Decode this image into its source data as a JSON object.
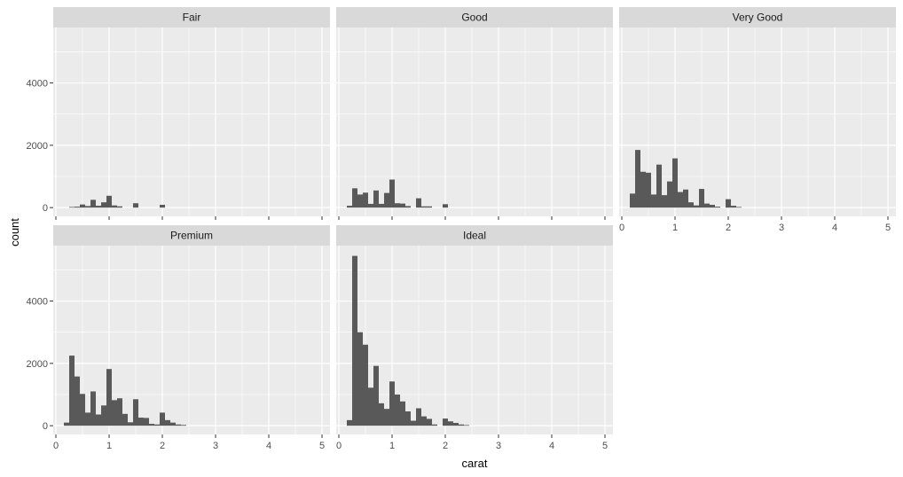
{
  "chart_data": {
    "type": "bar",
    "subtype": "faceted-histogram",
    "title": "",
    "xlabel": "carat",
    "ylabel": "count",
    "xlim": [
      -0.05,
      5.15
    ],
    "ylim": [
      -280,
      5780
    ],
    "x_ticks": [
      0,
      1,
      2,
      3,
      4,
      5
    ],
    "y_ticks": [
      0,
      2000,
      4000
    ],
    "bin_width": 0.1,
    "bar_color": "#595959",
    "panel_background": "#ebebeb",
    "strip_background": "#d9d9d9",
    "gridline_color": "#ffffff",
    "grid": true,
    "legend": "none",
    "facets": [
      {
        "name": "Fair",
        "bins": [
          {
            "x": 0.3,
            "count": 20
          },
          {
            "x": 0.4,
            "count": 30
          },
          {
            "x": 0.5,
            "count": 100
          },
          {
            "x": 0.6,
            "count": 50
          },
          {
            "x": 0.7,
            "count": 250
          },
          {
            "x": 0.8,
            "count": 60
          },
          {
            "x": 0.9,
            "count": 170
          },
          {
            "x": 1.0,
            "count": 380
          },
          {
            "x": 1.1,
            "count": 70
          },
          {
            "x": 1.2,
            "count": 40
          },
          {
            "x": 1.5,
            "count": 140
          },
          {
            "x": 2.0,
            "count": 90
          }
        ]
      },
      {
        "name": "Good",
        "bins": [
          {
            "x": 0.2,
            "count": 60
          },
          {
            "x": 0.3,
            "count": 620
          },
          {
            "x": 0.4,
            "count": 420
          },
          {
            "x": 0.5,
            "count": 480
          },
          {
            "x": 0.6,
            "count": 120
          },
          {
            "x": 0.7,
            "count": 550
          },
          {
            "x": 0.8,
            "count": 120
          },
          {
            "x": 0.9,
            "count": 470
          },
          {
            "x": 1.0,
            "count": 900
          },
          {
            "x": 1.1,
            "count": 140
          },
          {
            "x": 1.2,
            "count": 130
          },
          {
            "x": 1.3,
            "count": 50
          },
          {
            "x": 1.5,
            "count": 300
          },
          {
            "x": 1.6,
            "count": 40
          },
          {
            "x": 1.7,
            "count": 40
          },
          {
            "x": 2.0,
            "count": 110
          }
        ]
      },
      {
        "name": "Very Good",
        "bins": [
          {
            "x": 0.2,
            "count": 450
          },
          {
            "x": 0.3,
            "count": 1850
          },
          {
            "x": 0.4,
            "count": 1150
          },
          {
            "x": 0.5,
            "count": 1120
          },
          {
            "x": 0.6,
            "count": 420
          },
          {
            "x": 0.7,
            "count": 1380
          },
          {
            "x": 0.8,
            "count": 400
          },
          {
            "x": 0.9,
            "count": 840
          },
          {
            "x": 1.0,
            "count": 1580
          },
          {
            "x": 1.1,
            "count": 500
          },
          {
            "x": 1.2,
            "count": 580
          },
          {
            "x": 1.3,
            "count": 170
          },
          {
            "x": 1.4,
            "count": 70
          },
          {
            "x": 1.5,
            "count": 600
          },
          {
            "x": 1.6,
            "count": 130
          },
          {
            "x": 1.7,
            "count": 90
          },
          {
            "x": 1.8,
            "count": 30
          },
          {
            "x": 2.0,
            "count": 270
          },
          {
            "x": 2.1,
            "count": 60
          },
          {
            "x": 2.2,
            "count": 20
          }
        ]
      },
      {
        "name": "Premium",
        "bins": [
          {
            "x": 0.2,
            "count": 100
          },
          {
            "x": 0.3,
            "count": 2250
          },
          {
            "x": 0.4,
            "count": 1580
          },
          {
            "x": 0.5,
            "count": 1020
          },
          {
            "x": 0.6,
            "count": 420
          },
          {
            "x": 0.7,
            "count": 1100
          },
          {
            "x": 0.8,
            "count": 360
          },
          {
            "x": 0.9,
            "count": 650
          },
          {
            "x": 1.0,
            "count": 1820
          },
          {
            "x": 1.1,
            "count": 820
          },
          {
            "x": 1.2,
            "count": 880
          },
          {
            "x": 1.3,
            "count": 380
          },
          {
            "x": 1.4,
            "count": 110
          },
          {
            "x": 1.5,
            "count": 850
          },
          {
            "x": 1.6,
            "count": 260
          },
          {
            "x": 1.7,
            "count": 250
          },
          {
            "x": 1.8,
            "count": 60
          },
          {
            "x": 1.9,
            "count": 40
          },
          {
            "x": 2.0,
            "count": 420
          },
          {
            "x": 2.1,
            "count": 180
          },
          {
            "x": 2.2,
            "count": 100
          },
          {
            "x": 2.3,
            "count": 40
          },
          {
            "x": 2.4,
            "count": 25
          }
        ]
      },
      {
        "name": "Ideal",
        "bins": [
          {
            "x": 0.2,
            "count": 180
          },
          {
            "x": 0.3,
            "count": 5450
          },
          {
            "x": 0.4,
            "count": 3000
          },
          {
            "x": 0.5,
            "count": 2600
          },
          {
            "x": 0.6,
            "count": 1220
          },
          {
            "x": 0.7,
            "count": 1920
          },
          {
            "x": 0.8,
            "count": 720
          },
          {
            "x": 0.9,
            "count": 540
          },
          {
            "x": 1.0,
            "count": 1420
          },
          {
            "x": 1.1,
            "count": 1000
          },
          {
            "x": 1.2,
            "count": 780
          },
          {
            "x": 1.3,
            "count": 460
          },
          {
            "x": 1.4,
            "count": 160
          },
          {
            "x": 1.5,
            "count": 560
          },
          {
            "x": 1.6,
            "count": 300
          },
          {
            "x": 1.7,
            "count": 220
          },
          {
            "x": 1.8,
            "count": 40
          },
          {
            "x": 2.0,
            "count": 230
          },
          {
            "x": 2.1,
            "count": 140
          },
          {
            "x": 2.2,
            "count": 90
          },
          {
            "x": 2.3,
            "count": 40
          },
          {
            "x": 2.4,
            "count": 20
          }
        ]
      }
    ]
  }
}
